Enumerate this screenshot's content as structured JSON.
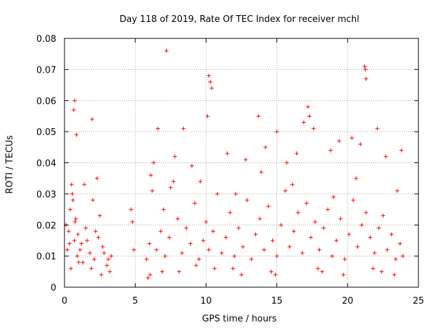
{
  "chart_data": {
    "type": "scatter",
    "title": "Day 118 of 2019, Rate Of TEC Index for receiver mchl",
    "xlabel": "GPS time / hours",
    "ylabel": "ROTI / TECUs",
    "xlim": [
      0,
      25
    ],
    "ylim": [
      0,
      0.08
    ],
    "x_ticks": [
      0,
      5,
      10,
      15,
      20,
      25
    ],
    "y_ticks": [
      0,
      0.01,
      0.02,
      0.03,
      0.04,
      0.05,
      0.06,
      0.07,
      0.08
    ],
    "x_tick_labels": [
      "0",
      "5",
      "10",
      "15",
      "20",
      "25"
    ],
    "y_tick_labels": [
      "0",
      "0.01",
      "0.02",
      "0.03",
      "0.04",
      "0.05",
      "0.06",
      "0.07",
      "0.08"
    ],
    "grid": true,
    "marker": "+",
    "marker_color": "#ff0000",
    "series": [
      {
        "name": "ROTI",
        "x": [
          0.2,
          0.3,
          0.4,
          0.5,
          0.6,
          0.7,
          0.8,
          0.9,
          1.0,
          1.2,
          1.5,
          1.8,
          2.1,
          2.4,
          2.7,
          3.0,
          3.3,
          0.1,
          0.35,
          0.55,
          0.75,
          0.95,
          1.1,
          1.3,
          1.6,
          1.9,
          2.2,
          2.5,
          2.8,
          3.1,
          3.2,
          4.7,
          4.8,
          4.9,
          5.8,
          6.0,
          6.2,
          6.5,
          6.8,
          7.0,
          7.1,
          7.4,
          7.7,
          8.0,
          8.3,
          8.6,
          8.9,
          9.2,
          9.5,
          9.8,
          10.0,
          10.2,
          10.5,
          10.8,
          11.1,
          11.4,
          11.7,
          12.0,
          12.3,
          12.6,
          12.9,
          13.2,
          13.5,
          13.8,
          14.1,
          14.4,
          14.7,
          15.0,
          15.3,
          15.6,
          15.9,
          16.2,
          16.5,
          16.8,
          17.1,
          17.4,
          17.7,
          18.0,
          18.3,
          18.6,
          18.9,
          19.2,
          19.5,
          19.8,
          20.1,
          20.4,
          20.7,
          21.0,
          21.3,
          21.6,
          21.9,
          22.2,
          22.5,
          22.8,
          23.1,
          23.4,
          23.7,
          23.9,
          0.65,
          0.72,
          0.85,
          1.95,
          6.6,
          7.2,
          8.4,
          10.1,
          10.2,
          10.3,
          10.4,
          13.7,
          15.0,
          16.9,
          17.2,
          17.3,
          17.6,
          19.4,
          20.3,
          21.2,
          21.25,
          21.3,
          22.1,
          23.8,
          6.3,
          7.8,
          9.0,
          11.5,
          12.8,
          14.2,
          15.7,
          16.4,
          18.8,
          20.9,
          22.7,
          1.4,
          2.0,
          2.3,
          6.1,
          7.5,
          9.6,
          12.1,
          13.9,
          16.1,
          19.0,
          20.6,
          23.5,
          6.05,
          8.1,
          10.6,
          12.5,
          14.6,
          17.9,
          19.7,
          22.4,
          0.45,
          2.6,
          5.9,
          6.9,
          9.3,
          11.9,
          14.9,
          18.2,
          21.8,
          23.3
        ],
        "y": [
          0.012,
          0.018,
          0.025,
          0.033,
          0.028,
          0.015,
          0.022,
          0.01,
          0.008,
          0.014,
          0.019,
          0.011,
          0.009,
          0.016,
          0.013,
          0.007,
          0.01,
          0.02,
          0.014,
          0.03,
          0.021,
          0.017,
          0.012,
          0.008,
          0.015,
          0.006,
          0.018,
          0.023,
          0.011,
          0.009,
          0.005,
          0.025,
          0.021,
          0.012,
          0.009,
          0.014,
          0.031,
          0.012,
          0.018,
          0.025,
          0.01,
          0.016,
          0.034,
          0.022,
          0.011,
          0.019,
          0.014,
          0.027,
          0.009,
          0.015,
          0.021,
          0.012,
          0.018,
          0.03,
          0.011,
          0.016,
          0.024,
          0.01,
          0.019,
          0.013,
          0.028,
          0.009,
          0.017,
          0.022,
          0.012,
          0.026,
          0.015,
          0.01,
          0.02,
          0.031,
          0.013,
          0.018,
          0.024,
          0.011,
          0.027,
          0.016,
          0.021,
          0.012,
          0.019,
          0.025,
          0.01,
          0.015,
          0.022,
          0.009,
          0.017,
          0.028,
          0.013,
          0.02,
          0.024,
          0.016,
          0.011,
          0.019,
          0.023,
          0.012,
          0.017,
          0.009,
          0.014,
          0.01,
          0.057,
          0.06,
          0.049,
          0.054,
          0.051,
          0.076,
          0.051,
          0.055,
          0.068,
          0.066,
          0.064,
          0.055,
          0.05,
          0.053,
          0.058,
          0.055,
          0.051,
          0.047,
          0.048,
          0.071,
          0.07,
          0.067,
          0.051,
          0.044,
          0.04,
          0.042,
          0.039,
          0.043,
          0.041,
          0.045,
          0.04,
          0.043,
          0.044,
          0.046,
          0.042,
          0.033,
          0.028,
          0.035,
          0.036,
          0.032,
          0.034,
          0.03,
          0.037,
          0.033,
          0.029,
          0.035,
          0.031,
          0.004,
          0.005,
          0.006,
          0.004,
          0.005,
          0.006,
          0.004,
          0.005,
          0.006,
          0.004,
          0.003,
          0.005,
          0.007,
          0.006,
          0.004,
          0.005,
          0.006,
          0.004
        ]
      }
    ]
  }
}
